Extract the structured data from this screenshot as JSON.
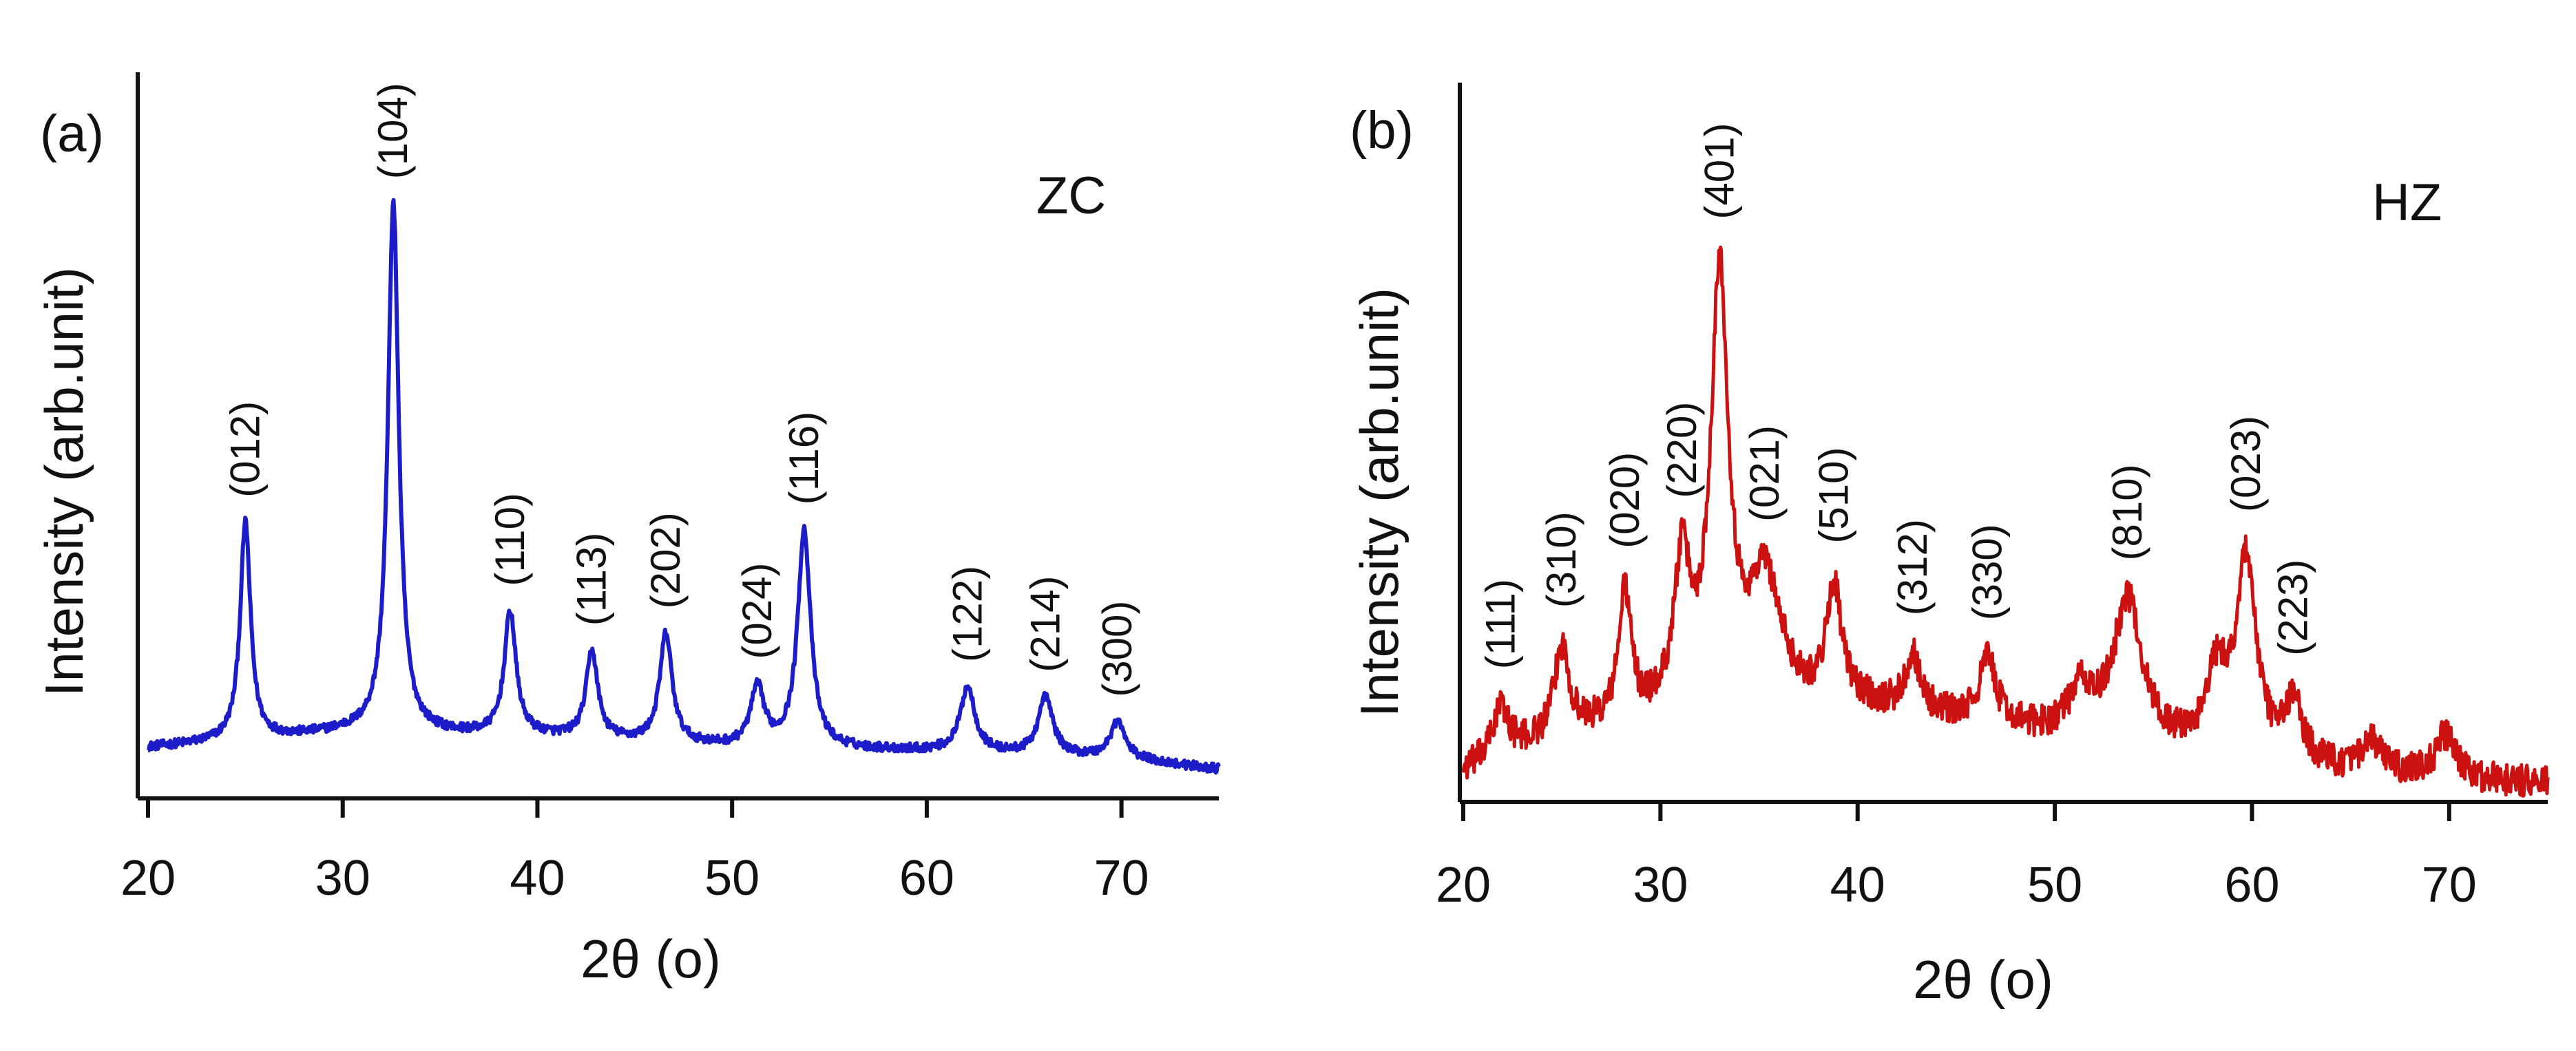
{
  "chart_data": [
    {
      "type": "line",
      "panel_label": "(a)",
      "sample": "ZC",
      "xlabel": "2θ (o)",
      "ylabel": "Intensity (arb.unit)",
      "xlim": [
        20,
        75
      ],
      "ylim": [
        0,
        1
      ],
      "xticks": [
        20,
        30,
        40,
        50,
        60,
        70
      ],
      "xtick_labels": [
        "20",
        "30",
        "40",
        "50",
        "60",
        "70"
      ],
      "color": "#1c1cc8",
      "baseline": [
        [
          20,
          0.07
        ],
        [
          30,
          0.09
        ],
        [
          40,
          0.085
        ],
        [
          50,
          0.07
        ],
        [
          60,
          0.065
        ],
        [
          70,
          0.055
        ],
        [
          75,
          0.04
        ]
      ],
      "noise": 0.006,
      "peaks": [
        {
          "x": 25.0,
          "height": 0.3,
          "width": 0.32,
          "label": "(012)"
        },
        {
          "x": 32.6,
          "height": 0.73,
          "width": 0.34,
          "label": "(104)"
        },
        {
          "x": 38.6,
          "height": 0.17,
          "width": 0.36,
          "label": "(110)"
        },
        {
          "x": 42.8,
          "height": 0.12,
          "width": 0.36,
          "label": "(113)"
        },
        {
          "x": 46.6,
          "height": 0.15,
          "width": 0.38,
          "label": "(202)"
        },
        {
          "x": 51.3,
          "height": 0.08,
          "width": 0.42,
          "label": "(024)"
        },
        {
          "x": 53.7,
          "height": 0.3,
          "width": 0.4,
          "label": "(116)"
        },
        {
          "x": 62.1,
          "height": 0.09,
          "width": 0.45,
          "label": "(122)"
        },
        {
          "x": 66.1,
          "height": 0.08,
          "width": 0.45,
          "label": "(214)"
        },
        {
          "x": 69.8,
          "height": 0.05,
          "width": 0.45,
          "label": "(300)"
        }
      ]
    },
    {
      "type": "line",
      "panel_label": "(b)",
      "sample": "HZ",
      "xlabel": "2θ  (o)",
      "ylabel": "Intensity (arb.unit)",
      "xlim": [
        20,
        75
      ],
      "ylim": [
        0,
        1
      ],
      "xticks": [
        20,
        30,
        40,
        50,
        60,
        70
      ],
      "xtick_labels": [
        "20",
        "30",
        "40",
        "50",
        "60",
        "70"
      ],
      "color": "#cc1111",
      "baseline": [
        [
          20,
          0.04
        ],
        [
          25,
          0.09
        ],
        [
          30,
          0.11
        ],
        [
          35,
          0.12
        ],
        [
          40,
          0.13
        ],
        [
          45,
          0.11
        ],
        [
          50,
          0.09
        ],
        [
          55,
          0.07
        ],
        [
          60,
          0.06
        ],
        [
          65,
          0.04
        ],
        [
          70,
          0.03
        ],
        [
          75,
          0.025
        ]
      ],
      "noise": 0.022,
      "peaks": [
        {
          "x": 21.9,
          "height": 0.07,
          "width": 0.5,
          "label": "(111)"
        },
        {
          "x": 25.0,
          "height": 0.12,
          "width": 0.45,
          "label": "(310)"
        },
        {
          "x": 28.2,
          "height": 0.18,
          "width": 0.38,
          "label": "(020)"
        },
        {
          "x": 31.1,
          "height": 0.2,
          "width": 0.5,
          "label": "(220)"
        },
        {
          "x": 33.0,
          "height": 0.6,
          "width": 0.55,
          "label": "(401)"
        },
        {
          "x": 35.3,
          "height": 0.18,
          "width": 1.0,
          "label": "(021)"
        },
        {
          "x": 38.8,
          "height": 0.16,
          "width": 0.45,
          "label": "(510)"
        },
        {
          "x": 42.8,
          "height": 0.08,
          "width": 0.45,
          "label": "(312)"
        },
        {
          "x": 46.6,
          "height": 0.09,
          "width": 0.5,
          "label": "(330)"
        },
        {
          "x": 53.7,
          "height": 0.2,
          "width": 0.9,
          "label": "(810)"
        },
        {
          "x": 59.7,
          "height": 0.27,
          "width": 0.6,
          "label": "(023)"
        },
        {
          "x": 62.1,
          "height": 0.08,
          "width": 0.5,
          "label": "(223)"
        }
      ],
      "extra_bumps": [
        {
          "x": 51.3,
          "height": 0.06,
          "width": 0.7
        },
        {
          "x": 58.2,
          "height": 0.1,
          "width": 0.6
        },
        {
          "x": 66.1,
          "height": 0.04,
          "width": 0.6
        },
        {
          "x": 69.8,
          "height": 0.06,
          "width": 0.6
        }
      ]
    }
  ]
}
